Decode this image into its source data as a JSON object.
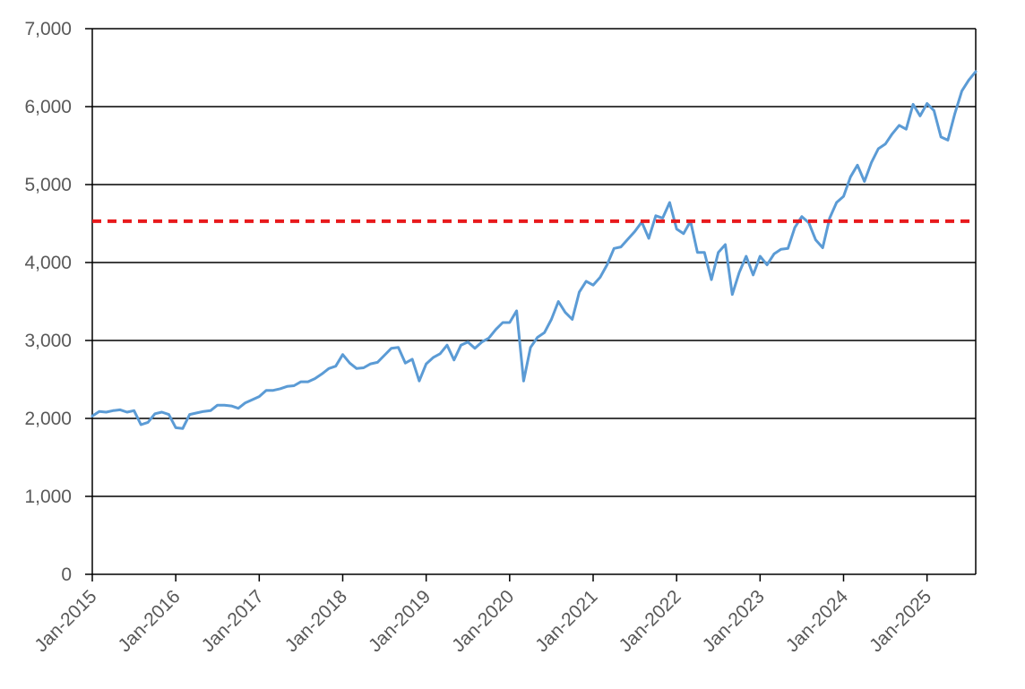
{
  "chart_data": {
    "type": "line",
    "title": "",
    "xlabel": "",
    "ylabel": "",
    "ylim": [
      0,
      7000
    ],
    "yticks": [
      {
        "value": 0,
        "label": "0"
      },
      {
        "value": 1000,
        "label": "1,000"
      },
      {
        "value": 2000,
        "label": "2,000"
      },
      {
        "value": 3000,
        "label": "3,000"
      },
      {
        "value": 4000,
        "label": "4,000"
      },
      {
        "value": 5000,
        "label": "5,000"
      },
      {
        "value": 6000,
        "label": "6,000"
      },
      {
        "value": 7000,
        "label": "7,000"
      }
    ],
    "xlim": [
      "2015-01",
      "2025-08"
    ],
    "xticks": [
      {
        "date": "2015-01",
        "label": "Jan-2015"
      },
      {
        "date": "2016-01",
        "label": "Jan-2016"
      },
      {
        "date": "2017-01",
        "label": "Jan-2017"
      },
      {
        "date": "2018-01",
        "label": "Jan-2018"
      },
      {
        "date": "2019-01",
        "label": "Jan-2019"
      },
      {
        "date": "2020-01",
        "label": "Jan-2020"
      },
      {
        "date": "2021-01",
        "label": "Jan-2021"
      },
      {
        "date": "2022-01",
        "label": "Jan-2022"
      },
      {
        "date": "2023-01",
        "label": "Jan-2023"
      },
      {
        "date": "2024-01",
        "label": "Jan-2024"
      },
      {
        "date": "2025-01",
        "label": "Jan-2025"
      }
    ],
    "grid": true,
    "legend": "none",
    "series": [
      {
        "color": "#5b9bd5",
        "points": [
          [
            "2015-01",
            2030
          ],
          [
            "2015-02",
            2090
          ],
          [
            "2015-03",
            2080
          ],
          [
            "2015-04",
            2100
          ],
          [
            "2015-05",
            2110
          ],
          [
            "2015-06",
            2080
          ],
          [
            "2015-07",
            2100
          ],
          [
            "2015-08",
            1920
          ],
          [
            "2015-09",
            1950
          ],
          [
            "2015-10",
            2060
          ],
          [
            "2015-11",
            2080
          ],
          [
            "2015-12",
            2050
          ],
          [
            "2016-01",
            1880
          ],
          [
            "2016-02",
            1870
          ],
          [
            "2016-03",
            2050
          ],
          [
            "2016-04",
            2070
          ],
          [
            "2016-05",
            2090
          ],
          [
            "2016-06",
            2100
          ],
          [
            "2016-07",
            2170
          ],
          [
            "2016-08",
            2170
          ],
          [
            "2016-09",
            2160
          ],
          [
            "2016-10",
            2130
          ],
          [
            "2016-11",
            2200
          ],
          [
            "2016-12",
            2240
          ],
          [
            "2017-01",
            2280
          ],
          [
            "2017-02",
            2360
          ],
          [
            "2017-03",
            2360
          ],
          [
            "2017-04",
            2380
          ],
          [
            "2017-05",
            2410
          ],
          [
            "2017-06",
            2420
          ],
          [
            "2017-07",
            2470
          ],
          [
            "2017-08",
            2470
          ],
          [
            "2017-09",
            2510
          ],
          [
            "2017-10",
            2570
          ],
          [
            "2017-11",
            2640
          ],
          [
            "2017-12",
            2670
          ],
          [
            "2018-01",
            2820
          ],
          [
            "2018-02",
            2710
          ],
          [
            "2018-03",
            2640
          ],
          [
            "2018-04",
            2650
          ],
          [
            "2018-05",
            2700
          ],
          [
            "2018-06",
            2720
          ],
          [
            "2018-07",
            2810
          ],
          [
            "2018-08",
            2900
          ],
          [
            "2018-09",
            2910
          ],
          [
            "2018-10",
            2710
          ],
          [
            "2018-11",
            2760
          ],
          [
            "2018-12",
            2480
          ],
          [
            "2019-01",
            2700
          ],
          [
            "2019-02",
            2780
          ],
          [
            "2019-03",
            2830
          ],
          [
            "2019-04",
            2940
          ],
          [
            "2019-05",
            2750
          ],
          [
            "2019-06",
            2940
          ],
          [
            "2019-07",
            2980
          ],
          [
            "2019-08",
            2900
          ],
          [
            "2019-09",
            2980
          ],
          [
            "2019-10",
            3030
          ],
          [
            "2019-11",
            3140
          ],
          [
            "2019-12",
            3230
          ],
          [
            "2020-01",
            3230
          ],
          [
            "2020-02",
            3380
          ],
          [
            "2020-03",
            2480
          ],
          [
            "2020-04",
            2910
          ],
          [
            "2020-05",
            3040
          ],
          [
            "2020-06",
            3100
          ],
          [
            "2020-07",
            3270
          ],
          [
            "2020-08",
            3500
          ],
          [
            "2020-09",
            3360
          ],
          [
            "2020-10",
            3270
          ],
          [
            "2020-11",
            3620
          ],
          [
            "2020-12",
            3760
          ],
          [
            "2021-01",
            3710
          ],
          [
            "2021-02",
            3810
          ],
          [
            "2021-03",
            3970
          ],
          [
            "2021-04",
            4180
          ],
          [
            "2021-05",
            4200
          ],
          [
            "2021-06",
            4300
          ],
          [
            "2021-07",
            4400
          ],
          [
            "2021-08",
            4520
          ],
          [
            "2021-09",
            4310
          ],
          [
            "2021-10",
            4600
          ],
          [
            "2021-11",
            4570
          ],
          [
            "2021-12",
            4770
          ],
          [
            "2022-01",
            4430
          ],
          [
            "2022-02",
            4370
          ],
          [
            "2022-03",
            4530
          ],
          [
            "2022-04",
            4130
          ],
          [
            "2022-05",
            4130
          ],
          [
            "2022-06",
            3780
          ],
          [
            "2022-07",
            4130
          ],
          [
            "2022-08",
            4230
          ],
          [
            "2022-09",
            3590
          ],
          [
            "2022-10",
            3870
          ],
          [
            "2022-11",
            4080
          ],
          [
            "2022-12",
            3840
          ],
          [
            "2023-01",
            4080
          ],
          [
            "2023-02",
            3970
          ],
          [
            "2023-03",
            4110
          ],
          [
            "2023-04",
            4170
          ],
          [
            "2023-05",
            4180
          ],
          [
            "2023-06",
            4450
          ],
          [
            "2023-07",
            4590
          ],
          [
            "2023-08",
            4510
          ],
          [
            "2023-09",
            4290
          ],
          [
            "2023-10",
            4190
          ],
          [
            "2023-11",
            4570
          ],
          [
            "2023-12",
            4770
          ],
          [
            "2024-01",
            4850
          ],
          [
            "2024-02",
            5100
          ],
          [
            "2024-03",
            5250
          ],
          [
            "2024-04",
            5040
          ],
          [
            "2024-05",
            5280
          ],
          [
            "2024-06",
            5460
          ],
          [
            "2024-07",
            5520
          ],
          [
            "2024-08",
            5650
          ],
          [
            "2024-09",
            5760
          ],
          [
            "2024-10",
            5710
          ],
          [
            "2024-11",
            6030
          ],
          [
            "2024-12",
            5880
          ],
          [
            "2025-01",
            6040
          ],
          [
            "2025-02",
            5950
          ],
          [
            "2025-03",
            5610
          ],
          [
            "2025-04",
            5570
          ],
          [
            "2025-05",
            5910
          ],
          [
            "2025-06",
            6200
          ],
          [
            "2025-07",
            6340
          ],
          [
            "2025-08",
            6450
          ]
        ]
      }
    ],
    "reference_lines": [
      {
        "value": 4530,
        "color": "#e8191c",
        "style": "dashed"
      }
    ]
  }
}
